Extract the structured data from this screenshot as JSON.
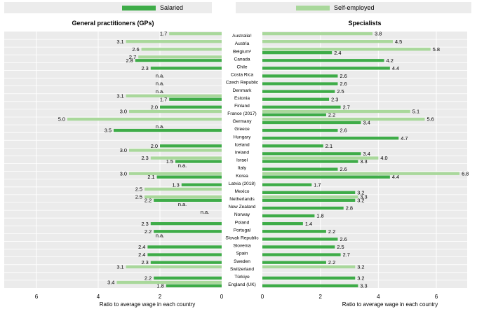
{
  "legend": {
    "salaried": "Salaried",
    "self_employed": "Self-employed"
  },
  "colors": {
    "salaried": "#3eac48",
    "self_employed": "#a9d89b",
    "panel_bg": "#ebebeb",
    "grid": "#ffffff"
  },
  "chart_data": [
    {
      "type": "bar",
      "orientation": "horizontal",
      "title": "General practitioners (GPs)",
      "xlabel": "Ratio to average wage in each country",
      "xlim": [
        0,
        7
      ],
      "xticks": [
        "6",
        "4",
        "2",
        "0"
      ],
      "x_reversed": true,
      "grid": true,
      "na_label": "n.a.",
      "categories": [
        "Australia¹",
        "Austria",
        "Belgium²",
        "Canada",
        "Chile",
        "Costa Rica",
        "Czech Republic",
        "Denmark",
        "Estonia",
        "Finland",
        "France (2017)",
        "Germany",
        "Greece",
        "Hungary",
        "Iceland",
        "Ireland",
        "Israel",
        "Italy",
        "Korea",
        "Latvia (2018)",
        "Mexico",
        "Netherlands",
        "New Zealand",
        "Norway",
        "Poland",
        "Portugal",
        "Slovak Republic",
        "Slovenia",
        "Spain",
        "Sweden",
        "Switzerland",
        "Türkiye",
        "England (UK)"
      ],
      "series": [
        {
          "name": "Salaried",
          "values": [
            null,
            null,
            null,
            2.8,
            2.3,
            null,
            null,
            null,
            1.7,
            2.0,
            null,
            null,
            3.5,
            null,
            2.0,
            null,
            1.5,
            null,
            2.1,
            1.3,
            null,
            2.2,
            null,
            null,
            2.3,
            2.2,
            null,
            2.4,
            2.4,
            2.3,
            null,
            2.2,
            1.8
          ]
        },
        {
          "name": "Self-employed",
          "values": [
            1.7,
            3.1,
            2.6,
            2.7,
            null,
            null,
            null,
            null,
            3.1,
            null,
            3.0,
            5.0,
            null,
            null,
            null,
            3.0,
            2.3,
            null,
            3.0,
            null,
            2.5,
            2.5,
            null,
            null,
            null,
            null,
            null,
            null,
            null,
            null,
            3.1,
            null,
            3.4
          ]
        }
      ],
      "na_positions": [
        {
          "row": 5,
          "series": "Salaried"
        },
        {
          "row": 6,
          "series": "Salaried"
        },
        {
          "row": 7,
          "series": "Salaried"
        },
        {
          "row": 12,
          "series": "Self-employed"
        },
        {
          "row": 17,
          "series": "Self-employed"
        },
        {
          "row": 22,
          "series": "Self-employed"
        },
        {
          "row": 23,
          "series": "Self-employed"
        },
        {
          "row": 26,
          "series": "Self-employed"
        }
      ]
    },
    {
      "type": "bar",
      "orientation": "horizontal",
      "title": "Specialists",
      "xlabel": "Ratio to average wage in each country",
      "xlim": [
        0,
        7
      ],
      "xticks": [
        "0",
        "2",
        "4",
        "6"
      ],
      "x_reversed": false,
      "grid": true,
      "categories": [
        "Australia¹",
        "Austria",
        "Belgium²",
        "Canada",
        "Chile",
        "Costa Rica",
        "Czech Republic",
        "Denmark",
        "Estonia",
        "Finland",
        "France (2017)",
        "Germany",
        "Greece",
        "Hungary",
        "Iceland",
        "Ireland",
        "Israel",
        "Italy",
        "Korea",
        "Latvia (2018)",
        "Mexico",
        "Netherlands",
        "New Zealand",
        "Norway",
        "Poland",
        "Portugal",
        "Slovak Republic",
        "Slovenia",
        "Spain",
        "Sweden",
        "Switzerland",
        "Türkiye",
        "England (UK)"
      ],
      "series": [
        {
          "name": "Salaried",
          "values": [
            null,
            null,
            2.4,
            4.2,
            4.4,
            2.6,
            2.6,
            2.5,
            2.3,
            2.7,
            2.2,
            3.4,
            2.6,
            4.7,
            2.1,
            3.4,
            3.3,
            2.6,
            4.4,
            1.7,
            3.2,
            3.2,
            2.8,
            1.8,
            1.4,
            2.2,
            2.6,
            2.5,
            2.7,
            2.2,
            null,
            3.2,
            3.3
          ]
        },
        {
          "name": "Self-employed",
          "values": [
            3.8,
            4.5,
            5.8,
            null,
            null,
            null,
            null,
            null,
            null,
            null,
            5.1,
            5.6,
            null,
            null,
            null,
            null,
            4.0,
            null,
            6.8,
            null,
            null,
            3.3,
            null,
            null,
            null,
            null,
            null,
            null,
            null,
            null,
            3.2,
            null,
            null
          ]
        }
      ]
    }
  ]
}
